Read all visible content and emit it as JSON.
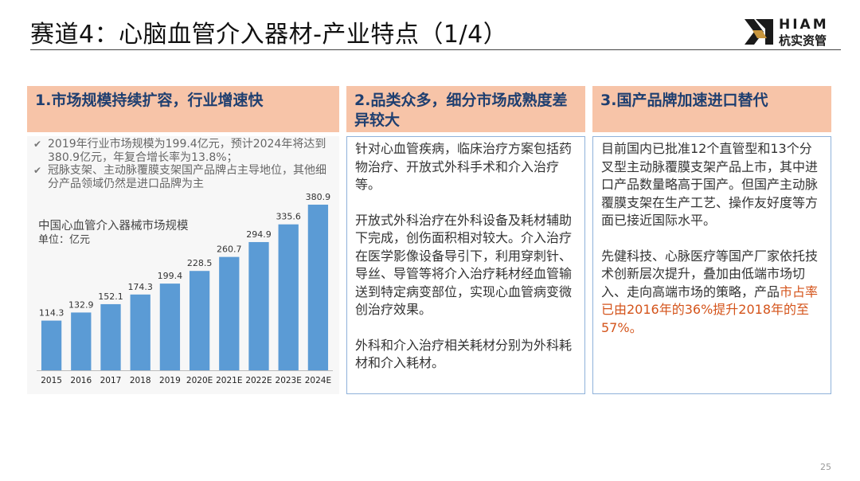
{
  "slide": {
    "title": "赛道4：心脑血管介入器材-产业特点（1/4）",
    "page_number": "25"
  },
  "logo": {
    "en": "HIAM",
    "cn": "杭实资管"
  },
  "columns": [
    {
      "heading": "1.市场规模持续扩容，行业增速快"
    },
    {
      "heading": "2.品类众多，细分市场成熟度差异较大"
    },
    {
      "heading": "3.国产品牌加速进口替代"
    }
  ],
  "col1": {
    "bullets": [
      "2019年行业市场规模为199.4亿元，预计2024年将达到380.9亿元，年复合增长率为13.8%；",
      "冠脉支架、主动脉覆膜支架国产品牌占主导地位，其他细分产品领域仍然是进口品牌为主"
    ]
  },
  "col2": {
    "paragraphs": [
      "针对心血管疾病，临床治疗方案包括药物治疗、开放式外科手术和介入治疗等。",
      "开放式外科治疗在外科设备及耗材辅助下完成，创伤面积相对较大。介入治疗在医学影像设备导引下，利用穿刺针、导丝、导管等将介入治疗耗材经血管输送到特定病变部位，实现心血管病变微创治疗效果。",
      "外科和介入治疗相关耗材分别为外科耗材和介入耗材。"
    ]
  },
  "col3": {
    "para1": "目前国内已批准12个直管型和13个分叉型主动脉覆膜支架产品上市，其中进口产品数量略高于国产。但国产主动脉覆膜支架在生产工艺、操作友好度等方面已接近国际水平。",
    "para2_plain": "先健科技、心脉医疗等国产厂家依托技术创新层次提升，叠加由低端市场切入、走向高端市场的策略，产品",
    "para2_highlight": "市占率已由2016年的36%提升2018年的至57%。"
  },
  "colors": {
    "header_bg": "#f7c4a8",
    "header_text": "#1f3f70",
    "box_border": "#8fb2da",
    "bar": "#5b9bd5",
    "highlight": "#d4541b"
  },
  "icons": [
    "check-icon",
    "hiam-logo-icon"
  ],
  "chart_data": {
    "type": "bar",
    "title": "中国心血管介入器械市场规模",
    "unit": "单位：亿元",
    "categories": [
      "2015",
      "2016",
      "2017",
      "2018",
      "2019",
      "2020E",
      "2021E",
      "2022E",
      "2023E",
      "2024E"
    ],
    "values": [
      114.3,
      132.9,
      152.1,
      174.3,
      199.4,
      228.5,
      260.7,
      294.9,
      335.6,
      380.9
    ],
    "value_labels": [
      "114.3",
      "132.9",
      "152.1",
      "174.3",
      "199.4",
      "228.5",
      "260.7",
      "294.9",
      "335.6",
      "380.9"
    ],
    "ylim": [
      0,
      380.9
    ],
    "grid": false,
    "legend": "none"
  }
}
